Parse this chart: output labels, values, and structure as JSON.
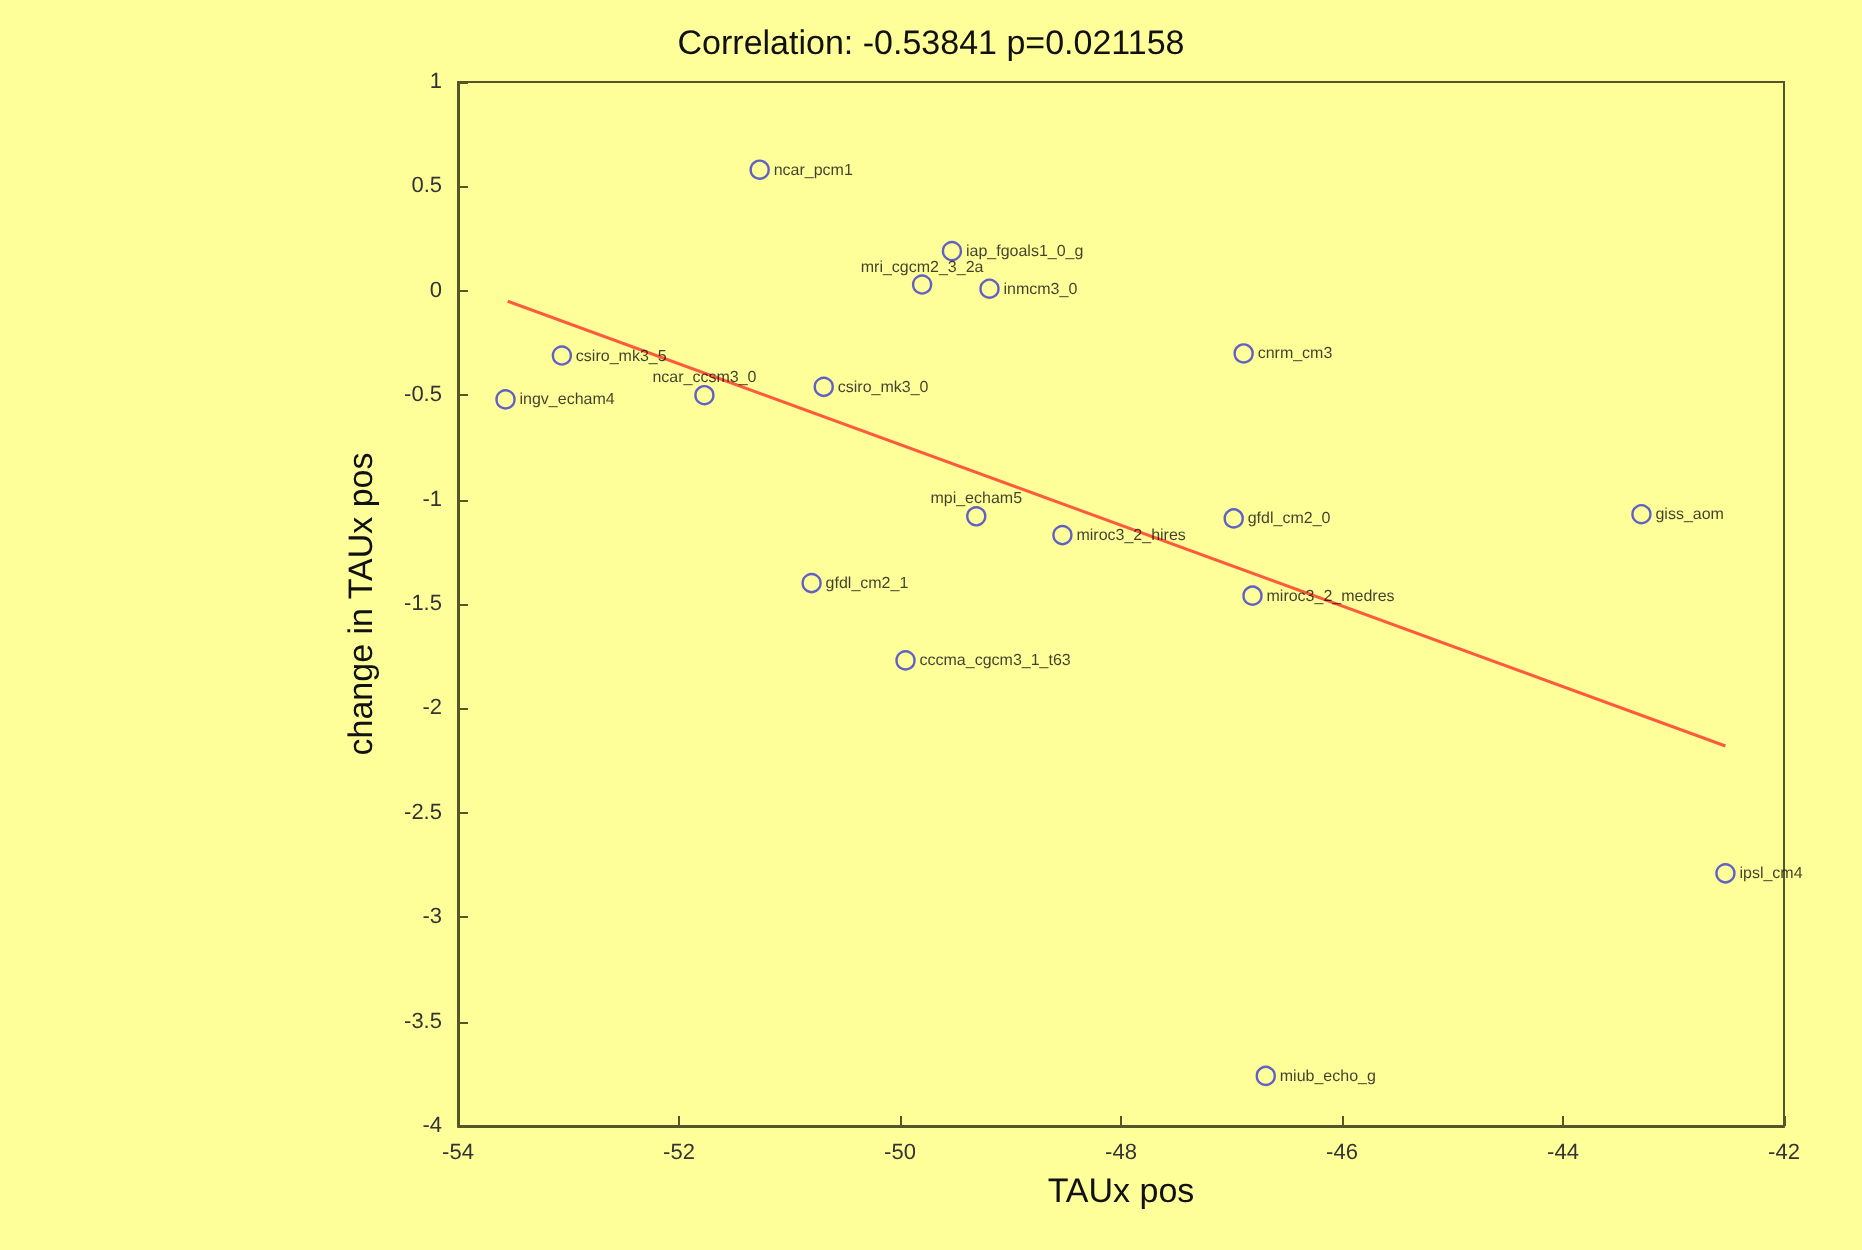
{
  "chart_data": {
    "type": "scatter",
    "title": "Correlation: -0.53841 p=0.021158",
    "xlabel": "TAUx pos",
    "ylabel": "change in TAUx pos",
    "xlim": [
      -54,
      -42
    ],
    "xticks": [
      -54,
      -52,
      -50,
      -48,
      -46,
      -44,
      -42
    ],
    "ylim": [
      -4,
      1
    ],
    "yticks": [
      -4,
      -3.5,
      -3,
      -2.5,
      -2,
      -1.5,
      -1,
      -0.5,
      0,
      0.5,
      1
    ],
    "grid": false,
    "marker": "circle",
    "series": [
      {
        "color": "#3a3ad0",
        "x": [
          -51.27,
          -49.53,
          -49.8,
          -49.19,
          -46.89,
          -53.06,
          -50.69,
          -53.57,
          -51.77,
          -46.69,
          -42.53,
          -43.29,
          -46.98,
          -46.81,
          -49.31,
          -48.53,
          -50.8,
          -49.95
        ],
        "values": [
          0.58,
          0.19,
          0.03,
          0.01,
          -0.3,
          -0.31,
          -0.46,
          -0.52,
          -0.5,
          -3.76,
          -2.79,
          -1.07,
          -1.09,
          -1.46,
          -1.08,
          -1.17,
          -1.4,
          -1.77
        ]
      },
      {
        "type": "line",
        "color": "#ff5a3c",
        "marker": "none",
        "x": [
          -53.55,
          -42.53
        ],
        "values": [
          -0.05,
          -2.18
        ]
      }
    ],
    "annotations": [
      {
        "text": "ncar_pcm1",
        "x": -51.27,
        "y": 0.58
      },
      {
        "text": "iap_fgoals1_0_g",
        "x": -49.53,
        "y": 0.19
      },
      {
        "text": "mri_cgcm2_3_2a",
        "x": -49.8,
        "y": 0.03
      },
      {
        "text": "inmcm3_0",
        "x": -49.19,
        "y": 0.01
      },
      {
        "text": "cnrm_cm3",
        "x": -46.89,
        "y": -0.3
      },
      {
        "text": "csiro_mk3_5",
        "x": -53.06,
        "y": -0.31
      },
      {
        "text": "csiro_mk3_0",
        "x": -50.69,
        "y": -0.46
      },
      {
        "text": "ingv_echam4",
        "x": -53.57,
        "y": -0.52
      },
      {
        "text": "ncar_ccsm3_0",
        "x": -51.77,
        "y": -0.5
      },
      {
        "text": "miub_echo_g",
        "x": -46.69,
        "y": -3.76
      },
      {
        "text": "ipsl_cm4",
        "x": -42.53,
        "y": -2.79
      },
      {
        "text": "giss_aom",
        "x": -43.29,
        "y": -1.07
      },
      {
        "text": "gfdl_cm2_0",
        "x": -46.98,
        "y": -1.09
      },
      {
        "text": "miroc3_2_medres",
        "x": -46.81,
        "y": -1.46
      },
      {
        "text": "mpi_echam5",
        "x": -49.31,
        "y": -1.08
      },
      {
        "text": "miroc3_2_hires",
        "x": -48.53,
        "y": -1.17
      },
      {
        "text": "gfdl_cm2_1",
        "x": -50.8,
        "y": -1.4
      },
      {
        "text": "cccma_cgcm3_1_t63",
        "x": -49.95,
        "y": -1.77
      }
    ]
  }
}
